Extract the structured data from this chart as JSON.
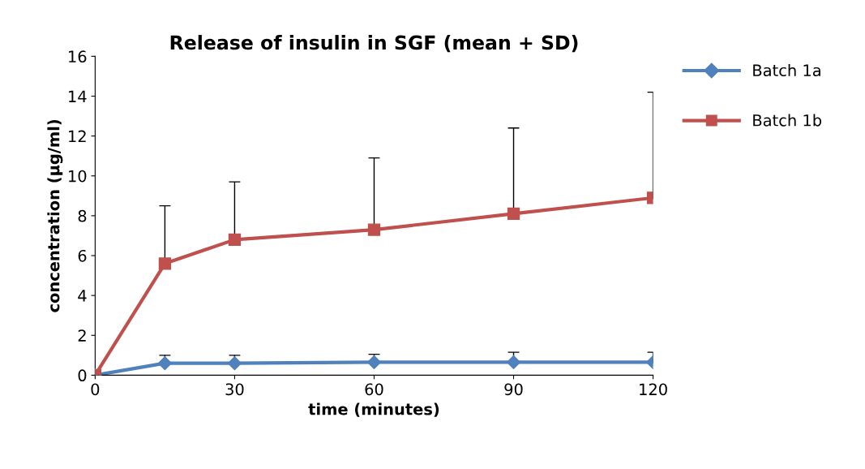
{
  "chart_data": {
    "type": "line",
    "title": "Release of insulin in SGF (mean + SD)",
    "xlabel": "time (minutes)",
    "ylabel": "concentration (µg/ml)",
    "x": [
      0,
      15,
      30,
      60,
      90,
      120
    ],
    "xlim": [
      0,
      120
    ],
    "xticks": [
      0,
      30,
      60,
      90,
      120
    ],
    "ylim": [
      0,
      16
    ],
    "yticks": [
      0,
      2,
      4,
      6,
      8,
      10,
      12,
      14,
      16
    ],
    "grid": false,
    "legend": "right",
    "line_style": "solid",
    "series": [
      {
        "name": "Batch 1a",
        "color": "#4f81bd",
        "marker": "diamond",
        "values": [
          0,
          0.6,
          0.6,
          0.65,
          0.65,
          0.65
        ],
        "errors": [
          null,
          [
            0.6,
            1.0
          ],
          [
            0.6,
            1.0
          ],
          [
            0.65,
            1.05
          ],
          [
            0.65,
            1.15
          ],
          [
            0.65,
            1.15
          ]
        ]
      },
      {
        "name": "Batch 1b",
        "color": "#c0504d",
        "marker": "square",
        "values": [
          0,
          5.6,
          6.8,
          7.3,
          8.1,
          8.9
        ],
        "errors": [
          null,
          [
            5.6,
            8.5
          ],
          [
            6.8,
            9.7
          ],
          [
            7.3,
            10.9
          ],
          [
            8.1,
            12.4
          ],
          [
            8.9,
            14.2
          ]
        ]
      }
    ]
  }
}
